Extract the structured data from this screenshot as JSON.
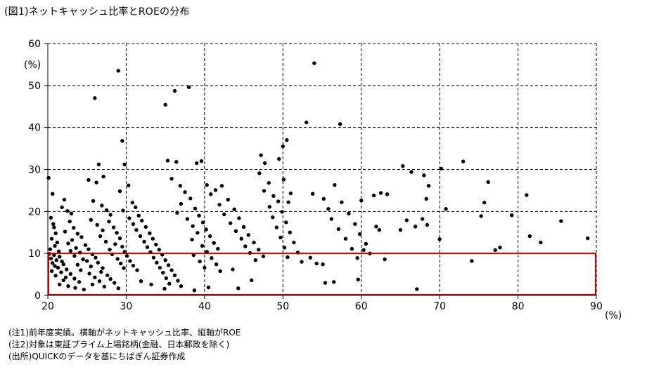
{
  "title": "(図1)ネットキャッシュ比率とROEの分布",
  "notes": [
    "(注1)前年度実績。横軸がネットキャッシュ比率、縦軸がROE",
    "(注2)対象は東証プライム上場銘柄(金融、日本郵政を除く)",
    "(出所)QUICKのデータを基にちばぎん証券作成"
  ],
  "chart_data": {
    "type": "scatter",
    "x_unit": "(%)",
    "y_unit": "(%)",
    "xlim": [
      20,
      90
    ],
    "ylim": [
      0,
      60
    ],
    "x_ticks": [
      20,
      30,
      40,
      50,
      60,
      70,
      80,
      90
    ],
    "y_ticks": [
      0,
      10,
      20,
      30,
      40,
      50,
      60
    ],
    "grid": true,
    "highlight_region": {
      "x": [
        20,
        90
      ],
      "y": [
        0,
        10
      ],
      "color": "#c00000"
    },
    "points": [
      [
        20.1,
        28.0
      ],
      [
        20.6,
        24.2
      ],
      [
        20.4,
        18.5
      ],
      [
        20.7,
        17.0
      ],
      [
        20.8,
        16.2
      ],
      [
        21.0,
        14.8
      ],
      [
        20.5,
        13.5
      ],
      [
        21.2,
        12.6
      ],
      [
        20.9,
        11.8
      ],
      [
        20.3,
        11.0
      ],
      [
        21.4,
        10.5
      ],
      [
        20.2,
        9.9
      ],
      [
        20.8,
        9.6
      ],
      [
        21.5,
        9.2
      ],
      [
        20.4,
        8.8
      ],
      [
        21.1,
        8.4
      ],
      [
        21.8,
        8.1
      ],
      [
        20.6,
        7.7
      ],
      [
        22.0,
        7.4
      ],
      [
        20.9,
        7.0
      ],
      [
        21.3,
        6.6
      ],
      [
        22.4,
        6.2
      ],
      [
        20.5,
        5.8
      ],
      [
        21.7,
        5.5
      ],
      [
        22.9,
        5.1
      ],
      [
        21.0,
        4.7
      ],
      [
        22.3,
        4.3
      ],
      [
        23.4,
        4.0
      ],
      [
        22.0,
        3.6
      ],
      [
        24.0,
        3.2
      ],
      [
        21.5,
        2.6
      ],
      [
        22.6,
        2.2
      ],
      [
        23.5,
        1.8
      ],
      [
        24.6,
        1.4
      ],
      [
        21.8,
        21.0
      ],
      [
        22.1,
        22.8
      ],
      [
        22.5,
        20.1
      ],
      [
        23.0,
        19.5
      ],
      [
        22.8,
        17.6
      ],
      [
        23.3,
        16.1
      ],
      [
        22.2,
        15.2
      ],
      [
        23.8,
        14.7
      ],
      [
        24.3,
        13.9
      ],
      [
        23.1,
        13.2
      ],
      [
        22.6,
        12.4
      ],
      [
        24.8,
        12.0
      ],
      [
        23.6,
        11.3
      ],
      [
        25.2,
        11.0
      ],
      [
        22.9,
        10.6
      ],
      [
        24.1,
        10.2
      ],
      [
        25.7,
        9.8
      ],
      [
        23.4,
        9.4
      ],
      [
        26.1,
        9.0
      ],
      [
        24.5,
        8.6
      ],
      [
        25.0,
        8.2
      ],
      [
        26.4,
        7.8
      ],
      [
        23.8,
        7.3
      ],
      [
        25.5,
        6.9
      ],
      [
        27.0,
        6.5
      ],
      [
        24.2,
        6.0
      ],
      [
        26.8,
        5.6
      ],
      [
        25.3,
        5.2
      ],
      [
        27.6,
        4.8
      ],
      [
        26.0,
        4.3
      ],
      [
        28.0,
        3.9
      ],
      [
        26.6,
        3.4
      ],
      [
        28.5,
        3.0
      ],
      [
        25.7,
        2.6
      ],
      [
        27.2,
        2.1
      ],
      [
        29.0,
        1.7
      ],
      [
        26.0,
        47.0
      ],
      [
        25.2,
        27.5
      ],
      [
        26.5,
        31.2
      ],
      [
        27.1,
        28.3
      ],
      [
        26.2,
        26.9
      ],
      [
        25.8,
        22.5
      ],
      [
        26.9,
        21.4
      ],
      [
        27.5,
        20.3
      ],
      [
        28.0,
        19.2
      ],
      [
        25.5,
        18.0
      ],
      [
        27.8,
        17.6
      ],
      [
        26.3,
        16.8
      ],
      [
        28.4,
        16.2
      ],
      [
        27.0,
        15.5
      ],
      [
        28.8,
        14.9
      ],
      [
        26.7,
        14.1
      ],
      [
        29.2,
        13.6
      ],
      [
        27.4,
        12.8
      ],
      [
        28.6,
        12.2
      ],
      [
        29.5,
        11.6
      ],
      [
        27.9,
        10.9
      ],
      [
        29.8,
        10.4
      ],
      [
        28.2,
        9.8
      ],
      [
        30.1,
        9.4
      ],
      [
        28.9,
        8.7
      ],
      [
        30.5,
        8.2
      ],
      [
        29.3,
        7.6
      ],
      [
        30.9,
        7.1
      ],
      [
        29.7,
        6.5
      ],
      [
        31.4,
        6.0
      ],
      [
        29.0,
        53.5
      ],
      [
        29.5,
        36.8
      ],
      [
        29.8,
        31.2
      ],
      [
        30.3,
        26.2
      ],
      [
        29.2,
        24.8
      ],
      [
        30.8,
        22.1
      ],
      [
        31.2,
        21.0
      ],
      [
        29.6,
        20.2
      ],
      [
        31.6,
        19.0
      ],
      [
        30.4,
        18.4
      ],
      [
        32.0,
        17.8
      ],
      [
        30.9,
        17.0
      ],
      [
        32.5,
        16.3
      ],
      [
        31.3,
        15.6
      ],
      [
        33.0,
        14.8
      ],
      [
        31.8,
        14.1
      ],
      [
        33.4,
        13.5
      ],
      [
        32.3,
        12.8
      ],
      [
        33.8,
        12.1
      ],
      [
        32.7,
        11.5
      ],
      [
        34.2,
        10.9
      ],
      [
        33.1,
        10.3
      ],
      [
        34.6,
        9.7
      ],
      [
        33.5,
        9.0
      ],
      [
        35.0,
        8.4
      ],
      [
        33.9,
        7.8
      ],
      [
        35.4,
        7.2
      ],
      [
        34.3,
        6.6
      ],
      [
        35.8,
        6.0
      ],
      [
        34.7,
        5.4
      ],
      [
        36.2,
        4.8
      ],
      [
        35.1,
        4.1
      ],
      [
        36.6,
        3.5
      ],
      [
        35.5,
        2.8
      ],
      [
        37.0,
        2.2
      ],
      [
        33.2,
        2.6
      ],
      [
        31.9,
        3.4
      ],
      [
        34.9,
        1.6
      ],
      [
        35.0,
        45.4
      ],
      [
        36.2,
        48.7
      ],
      [
        38.0,
        49.6
      ],
      [
        35.3,
        32.1
      ],
      [
        36.4,
        31.8
      ],
      [
        35.8,
        27.8
      ],
      [
        36.9,
        26.1
      ],
      [
        37.5,
        24.6
      ],
      [
        38.2,
        23.1
      ],
      [
        37.0,
        21.8
      ],
      [
        38.8,
        20.7
      ],
      [
        36.5,
        19.7
      ],
      [
        39.3,
        19.0
      ],
      [
        37.8,
        18.2
      ],
      [
        39.8,
        17.4
      ],
      [
        38.5,
        16.5
      ],
      [
        40.2,
        15.7
      ],
      [
        39.1,
        14.9
      ],
      [
        40.7,
        14.1
      ],
      [
        38.4,
        13.3
      ],
      [
        41.2,
        12.5
      ],
      [
        39.7,
        11.8
      ],
      [
        41.7,
        11.1
      ],
      [
        40.3,
        10.4
      ],
      [
        38.6,
        9.6
      ],
      [
        40.9,
        8.9
      ],
      [
        39.4,
        8.1
      ],
      [
        41.5,
        7.4
      ],
      [
        40.0,
        6.6
      ],
      [
        42.0,
        5.8
      ],
      [
        38.7,
        1.2
      ],
      [
        40.5,
        1.9
      ],
      [
        39.0,
        31.5
      ],
      [
        39.6,
        32.0
      ],
      [
        40.3,
        26.3
      ],
      [
        41.4,
        25.1
      ],
      [
        42.2,
        26.1
      ],
      [
        40.8,
        24.1
      ],
      [
        43.0,
        22.8
      ],
      [
        41.9,
        21.6
      ],
      [
        43.8,
        20.5
      ],
      [
        42.5,
        19.3
      ],
      [
        44.4,
        18.4
      ],
      [
        43.3,
        17.2
      ],
      [
        45.0,
        16.3
      ],
      [
        44.0,
        15.3
      ],
      [
        45.6,
        14.4
      ],
      [
        44.7,
        13.5
      ],
      [
        46.3,
        12.6
      ],
      [
        45.2,
        11.7
      ],
      [
        46.9,
        10.9
      ],
      [
        45.8,
        10.1
      ],
      [
        47.5,
        9.3
      ],
      [
        46.5,
        8.4
      ],
      [
        44.3,
        1.7
      ],
      [
        43.6,
        6.2
      ],
      [
        46.0,
        3.6
      ],
      [
        47.2,
        33.4
      ],
      [
        47.7,
        31.5
      ],
      [
        47.0,
        29.1
      ],
      [
        48.2,
        26.8
      ],
      [
        47.6,
        24.9
      ],
      [
        48.8,
        23.7
      ],
      [
        49.4,
        22.4
      ],
      [
        48.3,
        21.1
      ],
      [
        49.9,
        19.9
      ],
      [
        48.7,
        18.6
      ],
      [
        50.4,
        17.4
      ],
      [
        49.2,
        16.2
      ],
      [
        50.9,
        15.0
      ],
      [
        49.7,
        13.8
      ],
      [
        51.4,
        12.6
      ],
      [
        50.2,
        11.4
      ],
      [
        51.9,
        10.2
      ],
      [
        50.6,
        9.1
      ],
      [
        52.4,
        8.0
      ],
      [
        50.0,
        35.5
      ],
      [
        50.5,
        37.0
      ],
      [
        49.5,
        32.5
      ],
      [
        50.1,
        27.6
      ],
      [
        51.0,
        24.3
      ],
      [
        50.7,
        22.2
      ],
      [
        53.0,
        41.2
      ],
      [
        54.0,
        55.3
      ],
      [
        57.3,
        40.8
      ],
      [
        53.8,
        24.2
      ],
      [
        55.2,
        23.0
      ],
      [
        56.6,
        26.3
      ],
      [
        57.5,
        22.2
      ],
      [
        55.8,
        20.6
      ],
      [
        58.4,
        19.5
      ],
      [
        56.2,
        18.2
      ],
      [
        59.2,
        17.0
      ],
      [
        57.1,
        15.8
      ],
      [
        59.8,
        14.6
      ],
      [
        58.0,
        13.5
      ],
      [
        60.6,
        12.3
      ],
      [
        58.8,
        11.1
      ],
      [
        61.1,
        10.0
      ],
      [
        59.5,
        8.9
      ],
      [
        55.1,
        7.4
      ],
      [
        56.5,
        3.2
      ],
      [
        55.4,
        3.0
      ],
      [
        59.6,
        3.8
      ],
      [
        53.5,
        9.0
      ],
      [
        54.3,
        7.6
      ],
      [
        60.0,
        22.6
      ],
      [
        61.6,
        23.8
      ],
      [
        62.5,
        24.4
      ],
      [
        63.3,
        24.1
      ],
      [
        61.9,
        16.4
      ],
      [
        62.3,
        15.6
      ],
      [
        63.0,
        8.6
      ],
      [
        60.3,
        10.8
      ],
      [
        65.3,
        30.8
      ],
      [
        66.4,
        29.4
      ],
      [
        65.8,
        17.9
      ],
      [
        66.9,
        16.4
      ],
      [
        65.0,
        15.6
      ],
      [
        67.1,
        1.5
      ],
      [
        68.0,
        28.6
      ],
      [
        68.6,
        26.1
      ],
      [
        68.3,
        23.0
      ],
      [
        67.8,
        18.2
      ],
      [
        68.4,
        16.8
      ],
      [
        70.2,
        30.2
      ],
      [
        70.0,
        13.4
      ],
      [
        70.8,
        20.6
      ],
      [
        73.0,
        31.9
      ],
      [
        74.1,
        8.2
      ],
      [
        75.3,
        18.9
      ],
      [
        75.7,
        22.1
      ],
      [
        76.2,
        27.0
      ],
      [
        77.1,
        10.8
      ],
      [
        77.7,
        11.4
      ],
      [
        79.2,
        19.1
      ],
      [
        81.1,
        23.9
      ],
      [
        81.5,
        14.1
      ],
      [
        82.9,
        12.6
      ],
      [
        85.5,
        17.7
      ],
      [
        88.9,
        13.6
      ]
    ]
  }
}
